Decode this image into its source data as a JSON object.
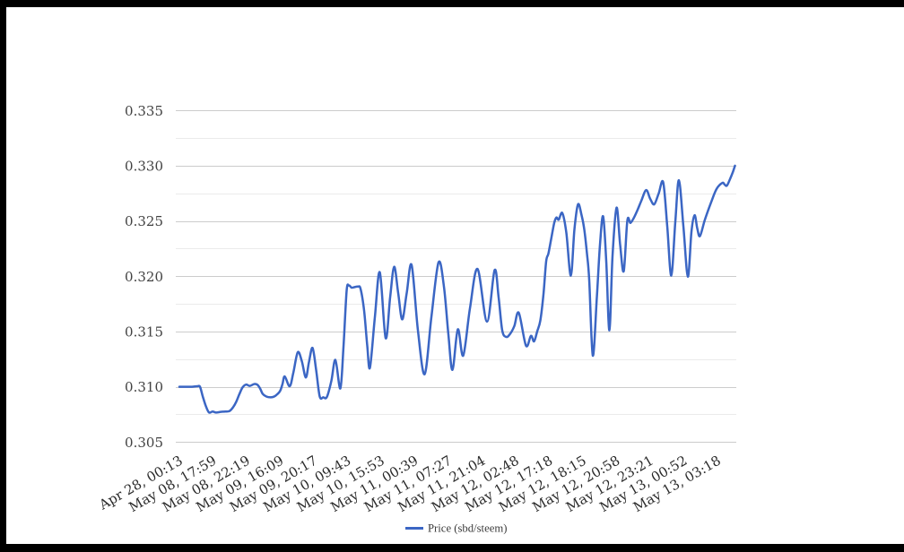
{
  "chart_data": {
    "type": "line",
    "title": "",
    "xlabel": "",
    "ylabel": "",
    "legend": {
      "position": "bottom",
      "label": "Price (sbd/steem)"
    },
    "series_name": "Price (sbd/steem)",
    "line_color": "#3b66c4",
    "ylim": [
      0.305,
      0.335
    ],
    "y_ticks": [
      "0.335",
      "0.330",
      "0.325",
      "0.320",
      "0.315",
      "0.310",
      "0.305"
    ],
    "y_tick_values": [
      0.335,
      0.33,
      0.325,
      0.32,
      0.315,
      0.31,
      0.305
    ],
    "y_minor_tick_values": [
      0.3325,
      0.3275,
      0.3225,
      0.3175,
      0.3125,
      0.3075
    ],
    "grid": {
      "major_color": "#cccccc",
      "minor_color": "#ebebeb"
    },
    "x_labels": [
      "Apr 28, 00:13",
      "May 08, 17:59",
      "May 08, 22:19",
      "May 09, 16:09",
      "May 09, 20:17",
      "May 10, 09:43",
      "May 10, 15:53",
      "May 11, 00:39",
      "May 11, 07:27",
      "May 11, 21:04",
      "May 12, 02:48",
      "May 12, 17:18",
      "May 12, 18:15",
      "May 12, 20:58",
      "May 12, 23:21",
      "May 13, 00:52",
      "May 13, 03:18"
    ],
    "x_label_rotation_deg": -30,
    "axis_text_color": "#2a2a2a",
    "y_axis_text_color": "#424242",
    "legend_text_color": "#3a3a3a",
    "frame_color": "#000000",
    "background_color": "#ffffff",
    "points": [
      [
        0.0064,
        0.31
      ],
      [
        0.0176,
        0.31
      ],
      [
        0.0288,
        0.31
      ],
      [
        0.0384,
        0.31005
      ],
      [
        0.0432,
        0.31
      ],
      [
        0.048,
        0.30915
      ],
      [
        0.0536,
        0.30826
      ],
      [
        0.0592,
        0.30768
      ],
      [
        0.0656,
        0.30776
      ],
      [
        0.072,
        0.30767
      ],
      [
        0.08,
        0.30773
      ],
      [
        0.088,
        0.30776
      ],
      [
        0.096,
        0.30781
      ],
      [
        0.1024,
        0.30816
      ],
      [
        0.108,
        0.30866
      ],
      [
        0.1136,
        0.30935
      ],
      [
        0.1192,
        0.30995
      ],
      [
        0.1256,
        0.3102
      ],
      [
        0.132,
        0.31008
      ],
      [
        0.14,
        0.31025
      ],
      [
        0.1456,
        0.31018
      ],
      [
        0.1504,
        0.30985
      ],
      [
        0.1552,
        0.30935
      ],
      [
        0.1616,
        0.30912
      ],
      [
        0.1696,
        0.30905
      ],
      [
        0.176,
        0.30913
      ],
      [
        0.1816,
        0.30935
      ],
      [
        0.1864,
        0.30965
      ],
      [
        0.1904,
        0.31025
      ],
      [
        0.1944,
        0.31094
      ],
      [
        0.2032,
        0.31005
      ],
      [
        0.2096,
        0.31124
      ],
      [
        0.2176,
        0.31312
      ],
      [
        0.2248,
        0.31233
      ],
      [
        0.232,
        0.31084
      ],
      [
        0.2376,
        0.31223
      ],
      [
        0.244,
        0.31352
      ],
      [
        0.2504,
        0.31153
      ],
      [
        0.2568,
        0.30912
      ],
      [
        0.2632,
        0.30905
      ],
      [
        0.2696,
        0.30908
      ],
      [
        0.2776,
        0.31054
      ],
      [
        0.2848,
        0.31243
      ],
      [
        0.2936,
        0.30985
      ],
      [
        0.2992,
        0.31362
      ],
      [
        0.3048,
        0.31868
      ],
      [
        0.3088,
        0.31917
      ],
      [
        0.3136,
        0.31897
      ],
      [
        0.3192,
        0.31902
      ],
      [
        0.3248,
        0.31907
      ],
      [
        0.3296,
        0.31887
      ],
      [
        0.336,
        0.31689
      ],
      [
        0.3416,
        0.31372
      ],
      [
        0.3464,
        0.31173
      ],
      [
        0.3552,
        0.3163
      ],
      [
        0.364,
        0.32036
      ],
      [
        0.3744,
        0.31441
      ],
      [
        0.3824,
        0.31808
      ],
      [
        0.3896,
        0.32086
      ],
      [
        0.3968,
        0.31848
      ],
      [
        0.404,
        0.3161
      ],
      [
        0.412,
        0.31848
      ],
      [
        0.4208,
        0.32101
      ],
      [
        0.432,
        0.31511
      ],
      [
        0.444,
        0.31114
      ],
      [
        0.456,
        0.3163
      ],
      [
        0.4688,
        0.32126
      ],
      [
        0.4784,
        0.31907
      ],
      [
        0.4864,
        0.31471
      ],
      [
        0.4936,
        0.31153
      ],
      [
        0.5032,
        0.3152
      ],
      [
        0.5128,
        0.31282
      ],
      [
        0.5248,
        0.31709
      ],
      [
        0.5384,
        0.32066
      ],
      [
        0.5552,
        0.3159
      ],
      [
        0.5688,
        0.32056
      ],
      [
        0.576,
        0.31808
      ],
      [
        0.5824,
        0.31511
      ],
      [
        0.5896,
        0.31451
      ],
      [
        0.5968,
        0.31481
      ],
      [
        0.604,
        0.3155
      ],
      [
        0.612,
        0.31669
      ],
      [
        0.6248,
        0.31372
      ],
      [
        0.6336,
        0.31461
      ],
      [
        0.6392,
        0.31411
      ],
      [
        0.6448,
        0.31501
      ],
      [
        0.6504,
        0.316
      ],
      [
        0.656,
        0.31838
      ],
      [
        0.6608,
        0.32135
      ],
      [
        0.6648,
        0.32205
      ],
      [
        0.6696,
        0.32334
      ],
      [
        0.6752,
        0.32483
      ],
      [
        0.6792,
        0.32532
      ],
      [
        0.6832,
        0.32512
      ],
      [
        0.6896,
        0.32572
      ],
      [
        0.6968,
        0.32393
      ],
      [
        0.7048,
        0.32006
      ],
      [
        0.7112,
        0.32423
      ],
      [
        0.7176,
        0.32651
      ],
      [
        0.724,
        0.32552
      ],
      [
        0.7288,
        0.32423
      ],
      [
        0.7336,
        0.32205
      ],
      [
        0.7376,
        0.31967
      ],
      [
        0.744,
        0.31282
      ],
      [
        0.7512,
        0.31808
      ],
      [
        0.7568,
        0.32284
      ],
      [
        0.7624,
        0.32542
      ],
      [
        0.768,
        0.32135
      ],
      [
        0.7736,
        0.31511
      ],
      [
        0.7792,
        0.32185
      ],
      [
        0.7864,
        0.32621
      ],
      [
        0.7928,
        0.32284
      ],
      [
        0.7992,
        0.32046
      ],
      [
        0.8056,
        0.32502
      ],
      [
        0.8112,
        0.32483
      ],
      [
        0.8176,
        0.32532
      ],
      [
        0.824,
        0.32602
      ],
      [
        0.8304,
        0.32681
      ],
      [
        0.8392,
        0.3278
      ],
      [
        0.8464,
        0.32701
      ],
      [
        0.8536,
        0.32651
      ],
      [
        0.8616,
        0.3275
      ],
      [
        0.8696,
        0.3285
      ],
      [
        0.8768,
        0.32453
      ],
      [
        0.884,
        0.32006
      ],
      [
        0.8912,
        0.32493
      ],
      [
        0.8976,
        0.32869
      ],
      [
        0.9056,
        0.32453
      ],
      [
        0.9136,
        0.31997
      ],
      [
        0.92,
        0.32403
      ],
      [
        0.9256,
        0.32552
      ],
      [
        0.9304,
        0.32433
      ],
      [
        0.9352,
        0.32364
      ],
      [
        0.944,
        0.32512
      ],
      [
        0.9552,
        0.32671
      ],
      [
        0.9648,
        0.3279
      ],
      [
        0.9752,
        0.32845
      ],
      [
        0.9792,
        0.3283
      ],
      [
        0.9832,
        0.3282
      ],
      [
        0.9888,
        0.32879
      ],
      [
        0.9936,
        0.32939
      ],
      [
        0.9976,
        0.33
      ]
    ]
  }
}
